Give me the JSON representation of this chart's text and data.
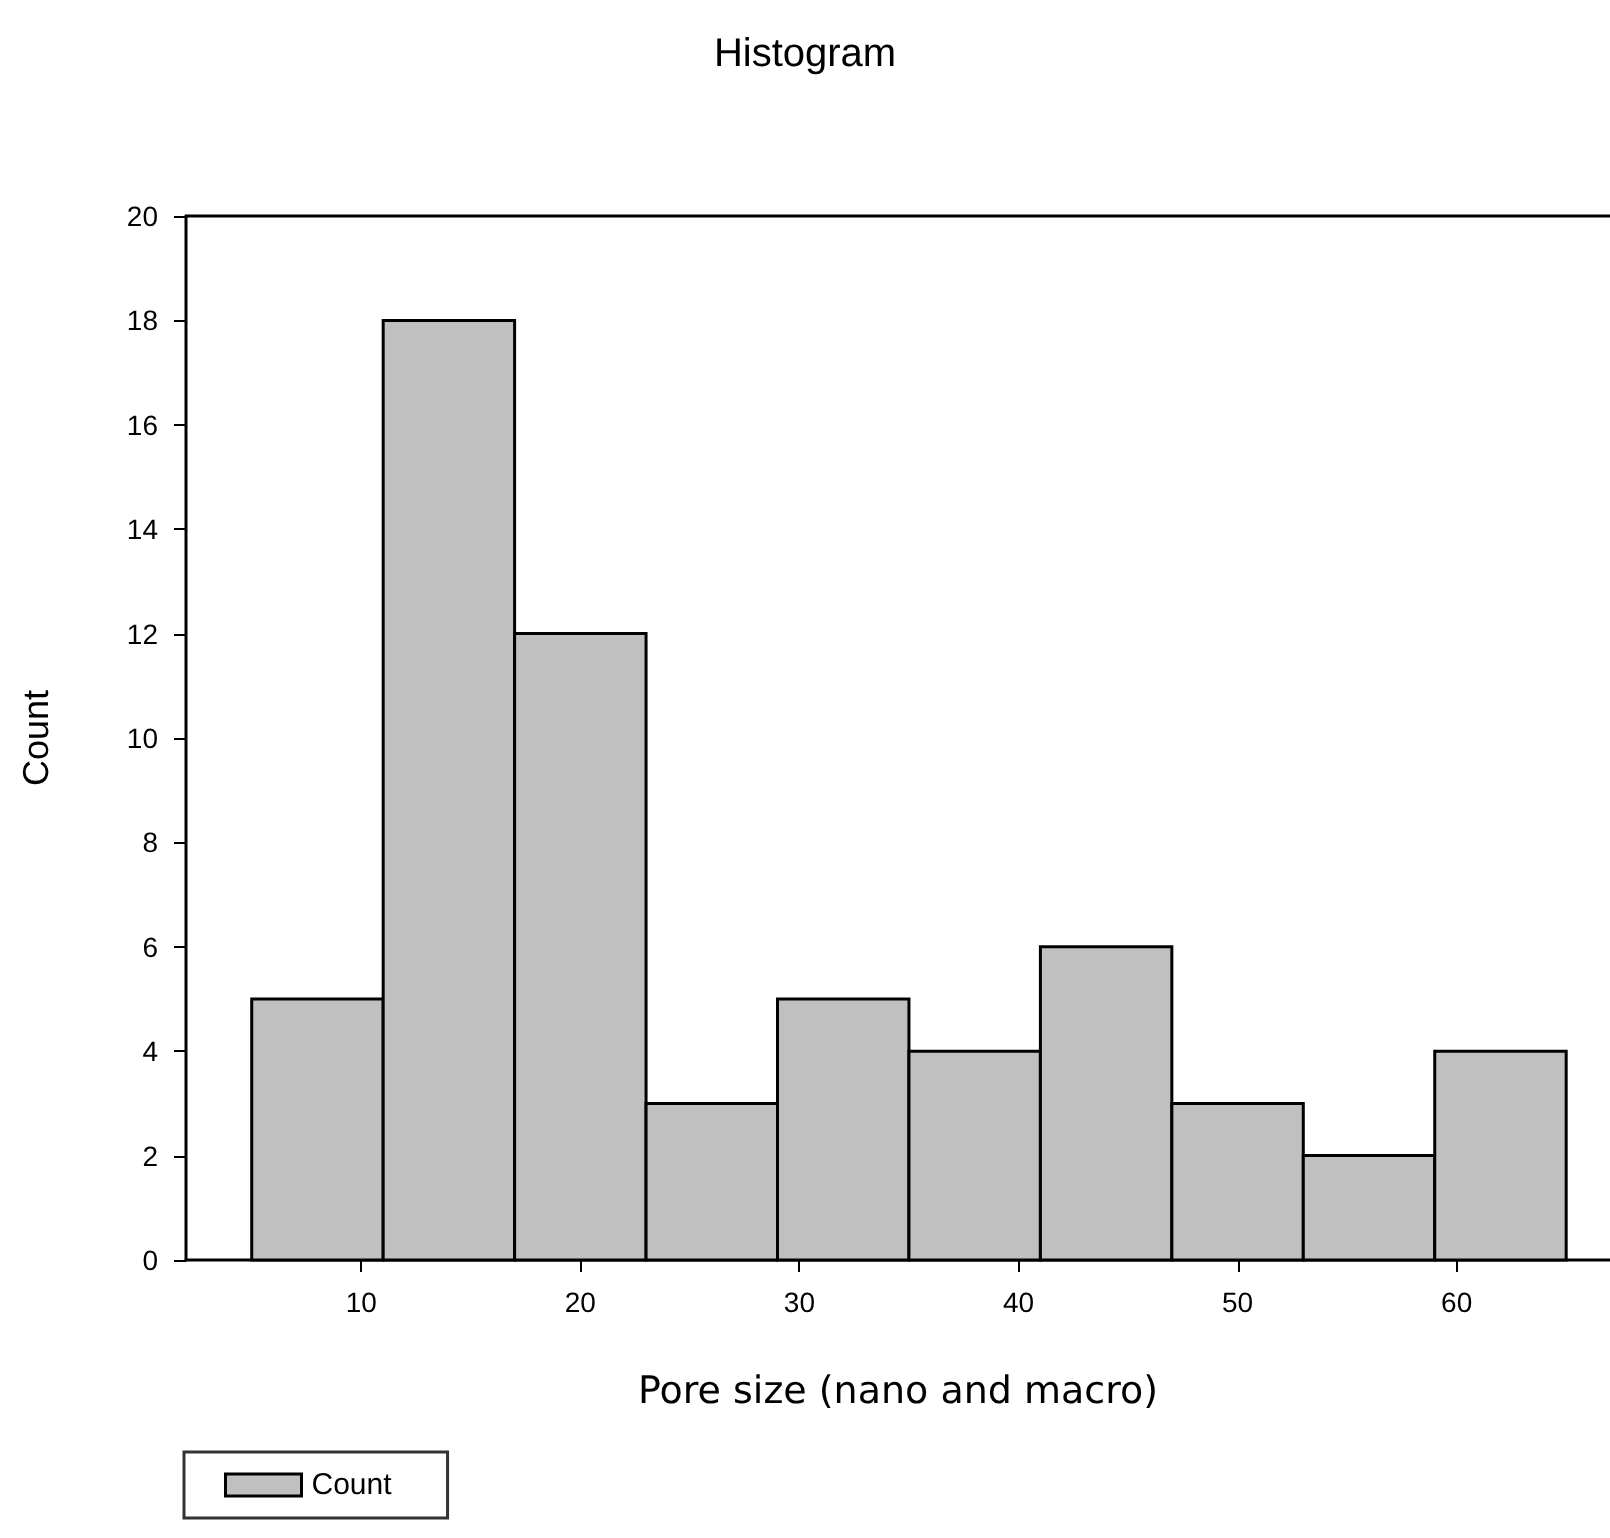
{
  "chart_data": {
    "type": "histogram",
    "title": "Histogram",
    "xlabel": "Pore size (nano and macro)",
    "ylabel": "Count",
    "bins": [
      5,
      11,
      17,
      23,
      29,
      35,
      41,
      47,
      53,
      59,
      65
    ],
    "series": [
      {
        "name": "Count",
        "color": "#c0c0c0",
        "values": [
          5,
          18,
          12,
          3,
          5,
          4,
          6,
          3,
          2,
          4
        ]
      }
    ],
    "xlim": [
      2,
      67
    ],
    "xticks": [
      10,
      20,
      30,
      40,
      50,
      60
    ],
    "ylim": [
      0,
      20
    ],
    "yticks": [
      0,
      2,
      4,
      6,
      8,
      10,
      12,
      14,
      16,
      18,
      20
    ],
    "grid": false,
    "legend": "bottom left"
  }
}
